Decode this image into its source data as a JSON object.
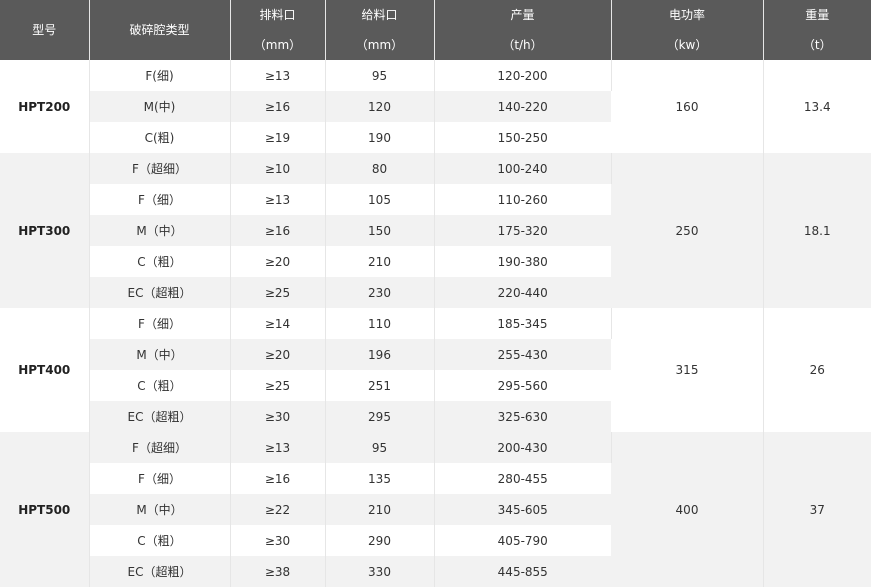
{
  "header": {
    "model": "型号",
    "cavity": "破碎腔类型",
    "discharge": {
      "label": "排料口",
      "unit": "（mm）"
    },
    "feed": {
      "label": "给料口",
      "unit": "（mm）"
    },
    "output": {
      "label": "产量",
      "unit": "（t/h）"
    },
    "power": {
      "label": "电功率",
      "unit": "（kw）"
    },
    "weight": {
      "label": "重量",
      "unit": "（t）"
    }
  },
  "groups": [
    {
      "model": "HPT200",
      "power": "160",
      "weight": "13.4",
      "rows": [
        {
          "cavity": "F(细)",
          "discharge": "≥13",
          "feed": "95",
          "output": "120-200"
        },
        {
          "cavity": "M(中)",
          "discharge": "≥16",
          "feed": "120",
          "output": "140-220"
        },
        {
          "cavity": "C(粗)",
          "discharge": "≥19",
          "feed": "190",
          "output": "150-250"
        }
      ]
    },
    {
      "model": "HPT300",
      "power": "250",
      "weight": "18.1",
      "rows": [
        {
          "cavity": "F（超细）",
          "discharge": "≥10",
          "feed": "80",
          "output": "100-240"
        },
        {
          "cavity": "F（细）",
          "discharge": "≥13",
          "feed": "105",
          "output": "110-260"
        },
        {
          "cavity": "M（中）",
          "discharge": "≥16",
          "feed": "150",
          "output": "175-320"
        },
        {
          "cavity": "C（粗）",
          "discharge": "≥20",
          "feed": "210",
          "output": "190-380"
        },
        {
          "cavity": "EC（超粗）",
          "discharge": "≥25",
          "feed": "230",
          "output": "220-440"
        }
      ]
    },
    {
      "model": "HPT400",
      "power": "315",
      "weight": "26",
      "rows": [
        {
          "cavity": "F（细）",
          "discharge": "≥14",
          "feed": "110",
          "output": "185-345"
        },
        {
          "cavity": "M（中）",
          "discharge": "≥20",
          "feed": "196",
          "output": "255-430"
        },
        {
          "cavity": "C（粗）",
          "discharge": "≥25",
          "feed": "251",
          "output": "295-560"
        },
        {
          "cavity": "EC（超粗）",
          "discharge": "≥30",
          "feed": "295",
          "output": "325-630"
        }
      ]
    },
    {
      "model": "HPT500",
      "power": "400",
      "weight": "37",
      "rows": [
        {
          "cavity": "F（超细）",
          "discharge": "≥13",
          "feed": "95",
          "output": "200-430"
        },
        {
          "cavity": "F（细）",
          "discharge": "≥16",
          "feed": "135",
          "output": "280-455"
        },
        {
          "cavity": "M（中）",
          "discharge": "≥22",
          "feed": "210",
          "output": "345-605"
        },
        {
          "cavity": "C（粗）",
          "discharge": "≥30",
          "feed": "290",
          "output": "405-790"
        },
        {
          "cavity": "EC（超粗）",
          "discharge": "≥38",
          "feed": "330",
          "output": "445-855"
        }
      ]
    }
  ],
  "colors": {
    "header_bg": "#5a5a5a",
    "header_text": "#ffffff",
    "stripe": "#f2f2f2"
  }
}
